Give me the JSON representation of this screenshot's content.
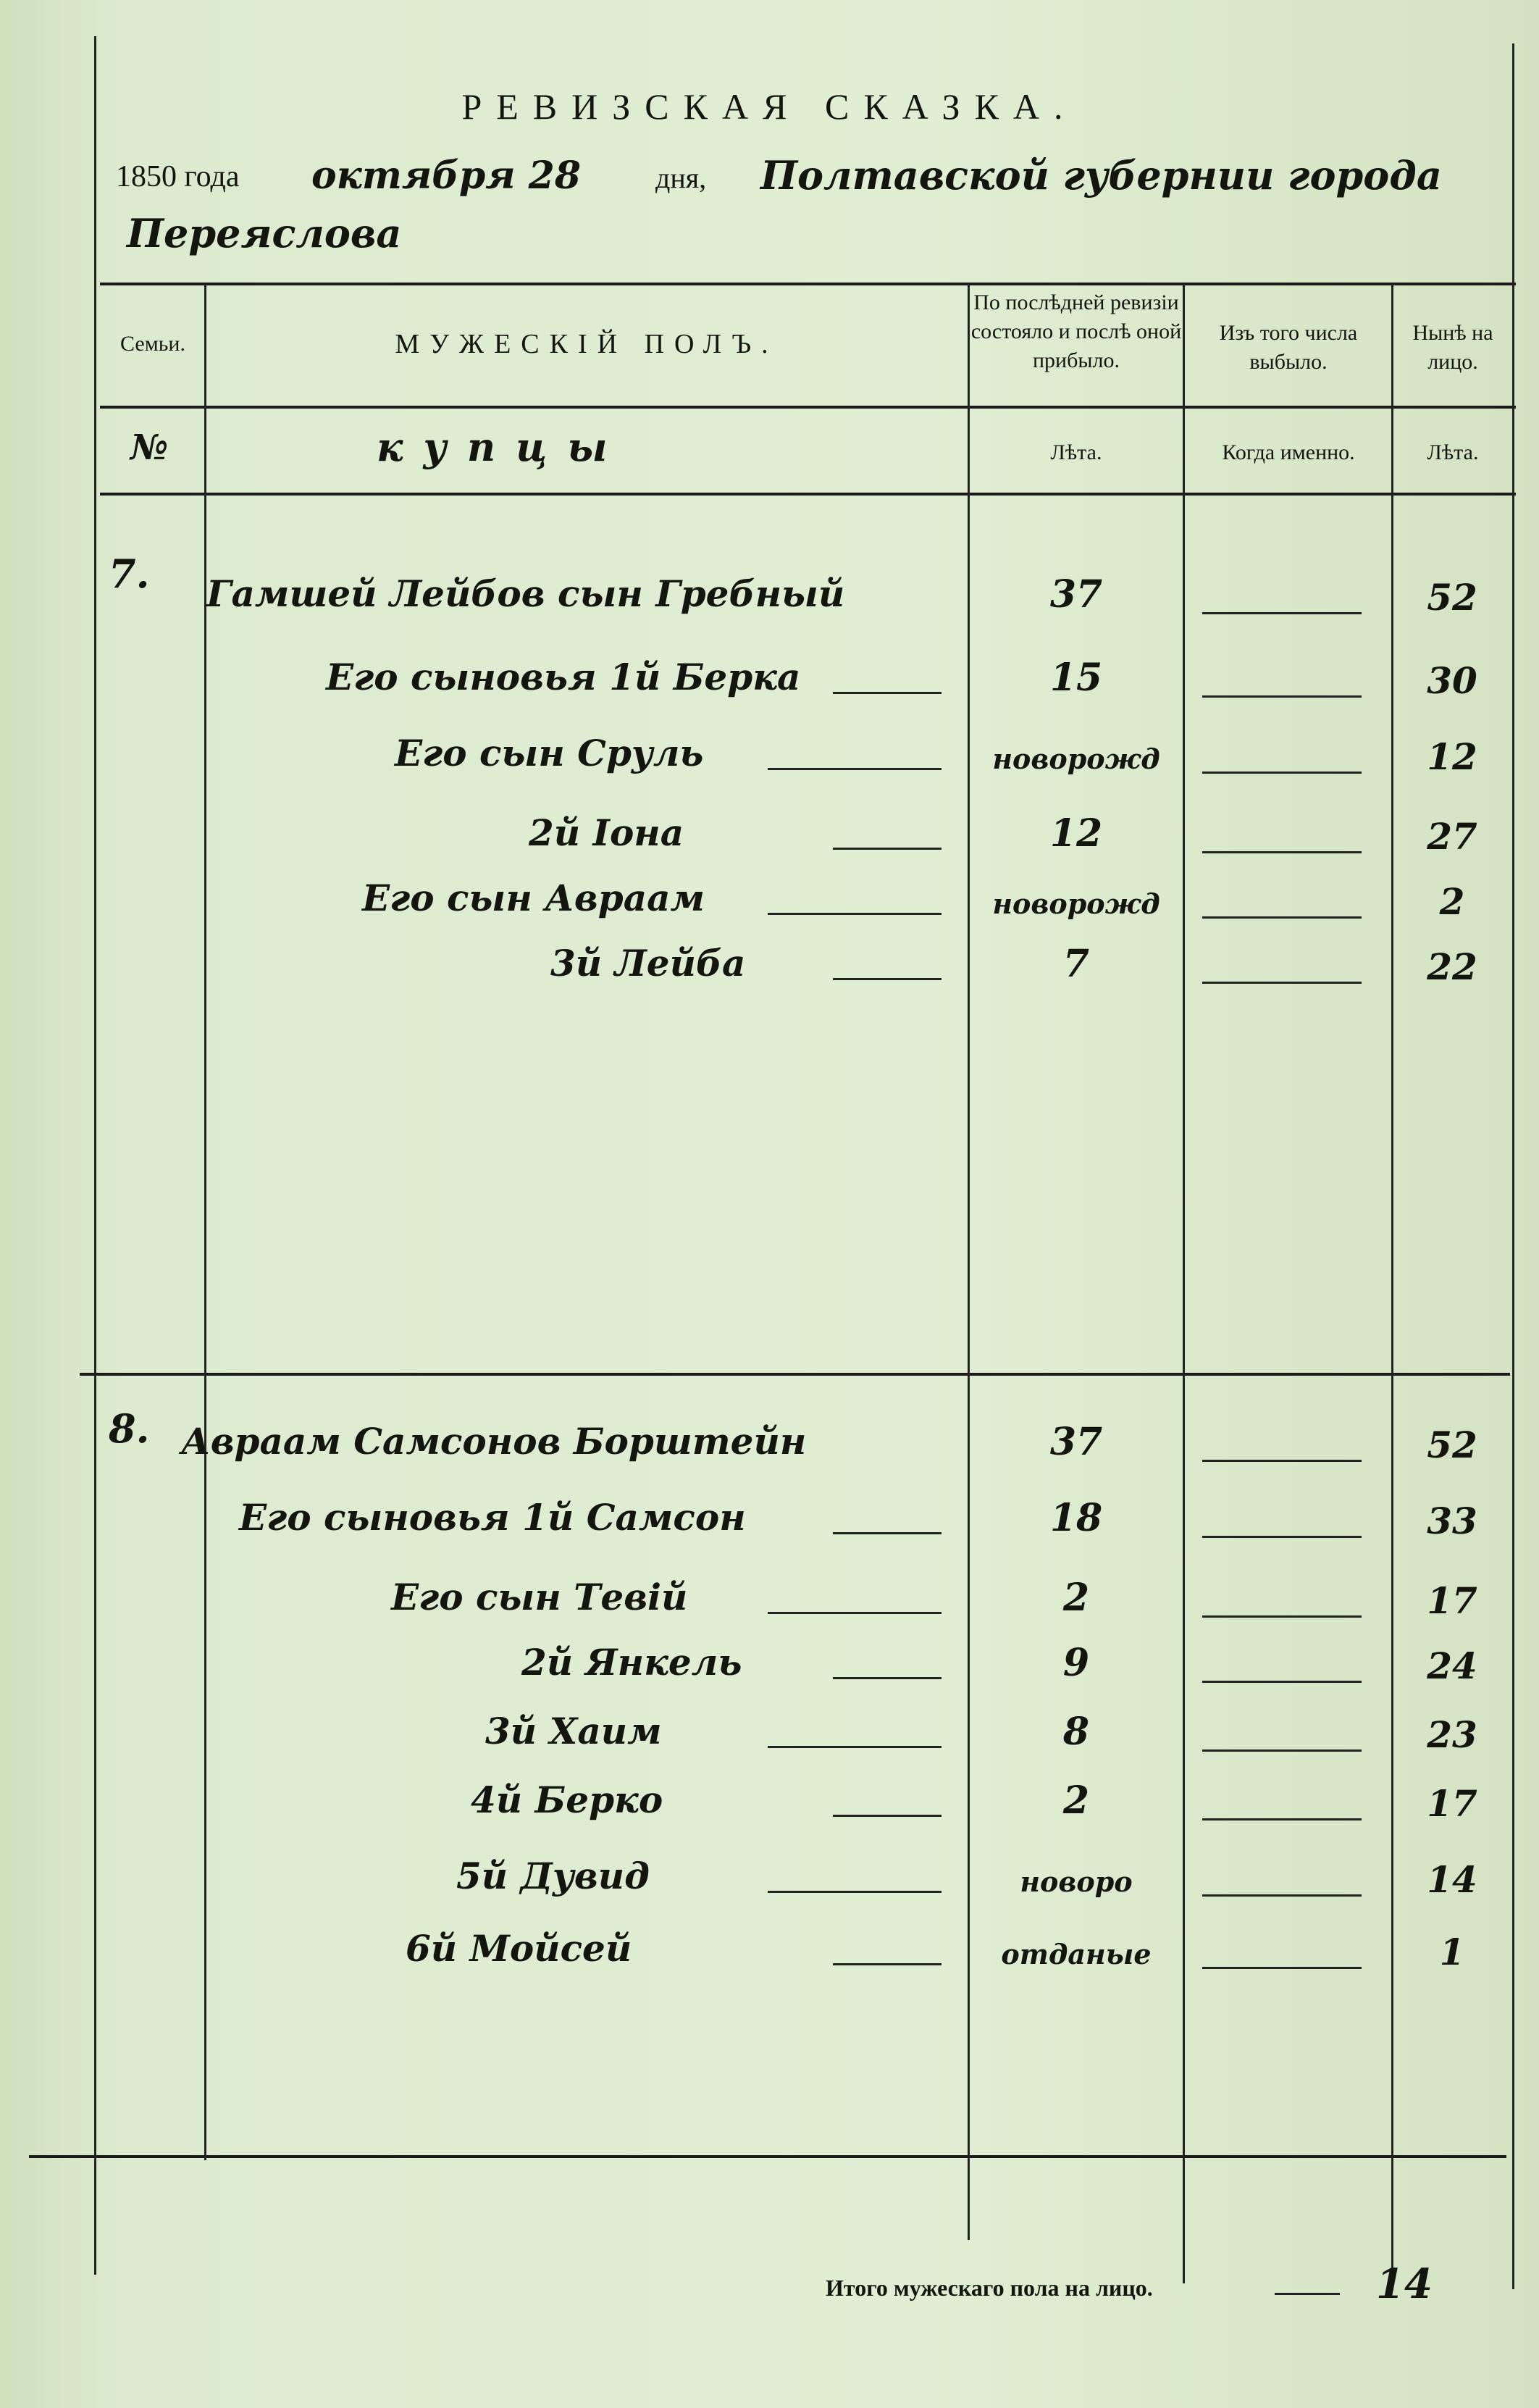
{
  "title": "РЕВИЗСКАЯ СКАЗКА.",
  "date_line": {
    "year": "1850",
    "year_label": "года",
    "month_day": "октября 28",
    "day_label": "дня,",
    "place": "Полтавской губернии города",
    "city": "Переяслова"
  },
  "table": {
    "headers": {
      "family": "Семьи.",
      "male": "МУЖЕСКІЙ ПОЛЪ.",
      "last_revision": "По послѣдней ревизіи состояло и послѣ оной прибыло.",
      "departed": "Изъ того числа выбыло.",
      "present": "Нынѣ на лицо."
    },
    "subheaders": {
      "number": "№",
      "estate": "купцы",
      "years1": "Лѣта.",
      "when": "Когда именно.",
      "years2": "Лѣта."
    },
    "families": [
      {
        "number": "7.",
        "members": [
          {
            "name": "Гамшей Лейбов сын Гребный",
            "last": "37",
            "departed": "—",
            "present": "52"
          },
          {
            "name": "Его сыновья 1й Берка",
            "last": "15",
            "departed": "—",
            "present": "30"
          },
          {
            "name": "Его сын Сруль",
            "last": "новорожд",
            "departed": "—",
            "present": "12"
          },
          {
            "name": "2й Іона",
            "last": "12",
            "departed": "—",
            "present": "27"
          },
          {
            "name": "Его сын Авраам",
            "last": "новорожд",
            "departed": "—",
            "present": "2"
          },
          {
            "name": "3й Лейба",
            "last": "7",
            "departed": "—",
            "present": "22"
          }
        ]
      },
      {
        "number": "8.",
        "members": [
          {
            "name": "Авраам Самсонов Борштейн",
            "last": "37",
            "departed": "—",
            "present": "52"
          },
          {
            "name": "Его сыновья 1й Самсон",
            "last": "18",
            "departed": "—",
            "present": "33"
          },
          {
            "name": "Его сын Тевій",
            "last": "2",
            "departed": "—",
            "present": "17"
          },
          {
            "name": "2й Янкель",
            "last": "9",
            "departed": "—",
            "present": "24"
          },
          {
            "name": "3й Хаим",
            "last": "8",
            "departed": "—",
            "present": "23"
          },
          {
            "name": "4й Берко",
            "last": "2",
            "departed": "—",
            "present": "17"
          },
          {
            "name": "5й Дувид",
            "last": "новоро",
            "departed": "—",
            "present": "14"
          },
          {
            "name": "6й Мойсей",
            "last": "отданые",
            "departed": "—",
            "present": "1"
          }
        ]
      }
    ]
  },
  "footer": {
    "label": "Итого мужескаго пола на лицо.",
    "total": "14"
  }
}
